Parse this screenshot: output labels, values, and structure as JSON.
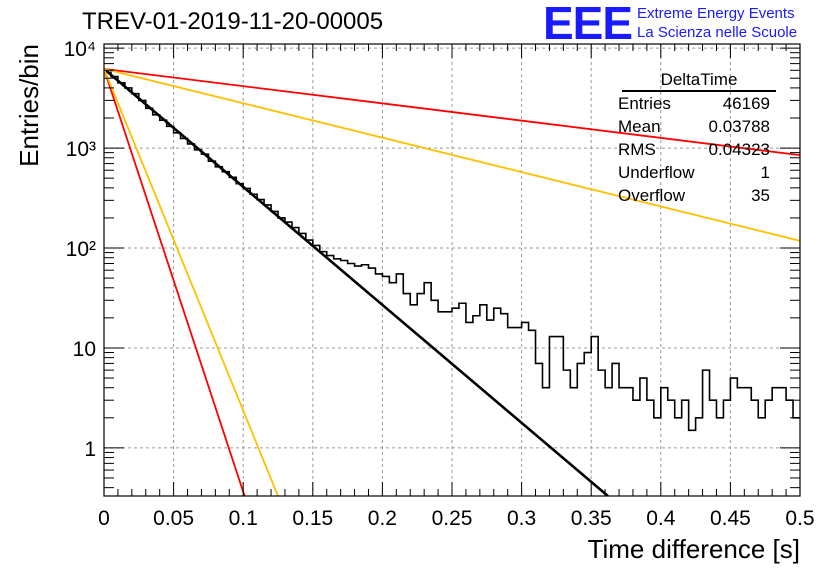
{
  "header": {
    "title": "TREV-01-2019-11-20-00005",
    "logo": "EEE",
    "logo_line1": "Extreme Energy Events",
    "logo_line2": "La Scienza nelle Scuole"
  },
  "stats_box": {
    "name": "DeltaTime",
    "rows": [
      {
        "label": "Entries",
        "value": "46169"
      },
      {
        "label": "Mean",
        "value": "0.03788"
      },
      {
        "label": "RMS",
        "value": "0.04323"
      },
      {
        "label": "Underflow",
        "value": "1"
      },
      {
        "label": "Overflow",
        "value": "35"
      }
    ]
  },
  "chart_data": {
    "type": "line",
    "title": "TREV-01-2019-11-20-00005",
    "xlabel": "Time difference [s]",
    "ylabel": "Entries/bin",
    "xlim": [
      0,
      0.5
    ],
    "ylim": [
      0.33,
      11000
    ],
    "yscale": "log",
    "grid": true,
    "x_ticks": [
      "0",
      "0.05",
      "0.1",
      "0.15",
      "0.2",
      "0.25",
      "0.3",
      "0.35",
      "0.4",
      "0.45",
      "0.5"
    ],
    "y_ticks": [
      {
        "value": 1,
        "label": "1"
      },
      {
        "value": 10,
        "label": "10"
      },
      {
        "value": 100,
        "label": "10²"
      },
      {
        "value": 1000,
        "label": "10³"
      },
      {
        "value": 10000,
        "label": "10⁴"
      }
    ],
    "histogram": {
      "bin_width": 0.005,
      "color": "#000000",
      "values": [
        6000,
        5200,
        4500,
        4000,
        3500,
        3000,
        2500,
        2150,
        1900,
        1650,
        1420,
        1250,
        1100,
        960,
        870,
        740,
        650,
        580,
        510,
        440,
        395,
        345,
        305,
        270,
        232,
        200,
        182,
        160,
        140,
        120,
        106,
        92,
        84,
        78,
        75,
        70,
        66,
        68,
        63,
        55,
        52,
        45,
        55,
        35,
        27,
        35,
        45,
        30,
        23,
        23,
        25,
        28,
        18,
        21,
        27,
        19,
        25,
        22,
        16,
        16,
        18,
        15,
        7,
        4,
        13,
        13,
        6,
        4,
        7,
        9,
        13,
        6,
        4,
        7,
        4,
        4,
        3,
        5,
        3,
        2,
        4,
        3,
        2,
        3,
        1.5,
        2,
        6,
        3,
        2,
        3,
        5,
        4,
        4,
        3,
        2,
        3,
        4,
        4,
        3,
        2
      ]
    },
    "fit_lines": [
      {
        "color": "#000000",
        "x": [
          0,
          0.362
        ],
        "y": [
          6200,
          0.33
        ]
      },
      {
        "color": "#ff0000",
        "x": [
          0,
          0.5
        ],
        "y": [
          6200,
          850
        ]
      },
      {
        "color": "#ffc000",
        "x": [
          0,
          0.5
        ],
        "y": [
          6200,
          118
        ]
      },
      {
        "color": "#ff0000",
        "x": [
          0,
          0.101
        ],
        "y": [
          6200,
          0.33
        ]
      },
      {
        "color": "#ffc000",
        "x": [
          0,
          0.125
        ],
        "y": [
          6200,
          0.33
        ]
      }
    ]
  }
}
